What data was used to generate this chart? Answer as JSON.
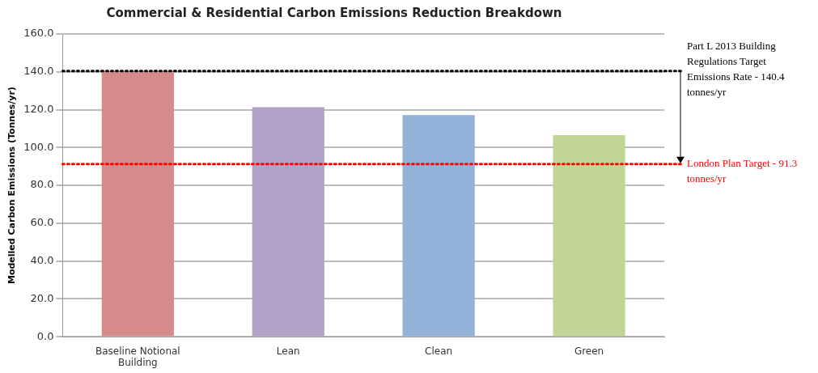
{
  "chart_data": {
    "type": "bar",
    "title": "Commercial & Residential Carbon Emissions Reduction Breakdown",
    "ylabel": "Modelled Carbon Emissions (Tonnes/yr)",
    "categories": [
      "Baseline Notional Building",
      "Lean",
      "Clean",
      "Green"
    ],
    "values": [
      140.4,
      121.3,
      117.1,
      106.5
    ],
    "colors": [
      "#d58b8b",
      "#b3a2c8",
      "#93b2d9",
      "#c3d595"
    ],
    "ylim": [
      0,
      160
    ],
    "yticks": [
      {
        "value": 0,
        "label": "0.0"
      },
      {
        "value": 20,
        "label": "20.0"
      },
      {
        "value": 40,
        "label": "40.0"
      },
      {
        "value": 60,
        "label": "60.0"
      },
      {
        "value": 80,
        "label": "80.0"
      },
      {
        "value": 100,
        "label": "100.0"
      },
      {
        "value": 120,
        "label": "120.0"
      },
      {
        "value": 140,
        "label": "140.0"
      },
      {
        "value": 160,
        "label": "160.0"
      }
    ],
    "grid": "y",
    "legend": false,
    "ref_lines": [
      {
        "axis": "y",
        "value": 140.4,
        "label": "Part L 2013 Building Regulations Target Emissions Rate - 140.4 tonnes/yr",
        "color": "#000000",
        "line_style": "dotted"
      },
      {
        "axis": "y",
        "value": 91.3,
        "label": "London Plan Target - 91.3 tonnes/yr",
        "color": "#ff0000",
        "line_style": "dotted"
      }
    ]
  }
}
